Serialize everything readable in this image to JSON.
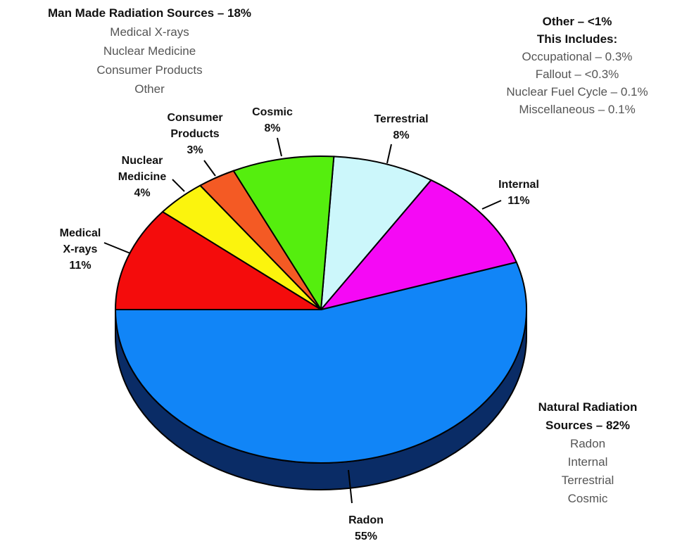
{
  "chart_data": {
    "type": "pie",
    "slices": [
      {
        "label": "Radon",
        "value": 55,
        "value_label": "55%",
        "color": "#1185f7"
      },
      {
        "label": "Internal",
        "value": 11,
        "value_label": "11%",
        "color": "#f509f5"
      },
      {
        "label": "Terrestrial",
        "value": 8,
        "value_label": "8%",
        "color": "#ccf7fb"
      },
      {
        "label": "Cosmic",
        "value": 8,
        "value_label": "8%",
        "color": "#55ee0e"
      },
      {
        "label": "Consumer Products",
        "value": 3,
        "value_label": "3%",
        "color": "#f45a24"
      },
      {
        "label": "Nuclear Medicine",
        "value": 4,
        "value_label": "4%",
        "color": "#fbf40d"
      },
      {
        "label": "Medical X-rays",
        "value": 11,
        "value_label": "11%",
        "color": "#f40c0c"
      }
    ],
    "side_color": "#0a2c66"
  },
  "man_made": {
    "title": "Man Made Radiation Sources – 18%",
    "items": [
      "Medical X-rays",
      "Nuclear Medicine",
      "Consumer Products",
      "Other"
    ]
  },
  "other": {
    "title_1": "Other – <1%",
    "title_2": "This Includes:",
    "items": [
      "Occupational – 0.3%",
      "Fallout – <0.3%",
      "Nuclear Fuel Cycle – 0.1%",
      "Miscellaneous – 0.1%"
    ]
  },
  "natural": {
    "title_1": "Natural Radiation",
    "title_2": "Sources – 82%",
    "items": [
      "Radon",
      "Internal",
      "Terrestrial",
      "Cosmic"
    ]
  },
  "labels": {
    "radon": [
      "Radon",
      "55%"
    ],
    "internal": [
      "Internal",
      "11%"
    ],
    "terrestrial": [
      "Terrestrial",
      "8%"
    ],
    "cosmic": [
      "Cosmic",
      "8%"
    ],
    "consumer": [
      "Consumer",
      "Products",
      "3%"
    ],
    "nuclear": [
      "Nuclear",
      "Medicine",
      "4%"
    ],
    "xray": [
      "Medical",
      "X-rays",
      "11%"
    ]
  }
}
